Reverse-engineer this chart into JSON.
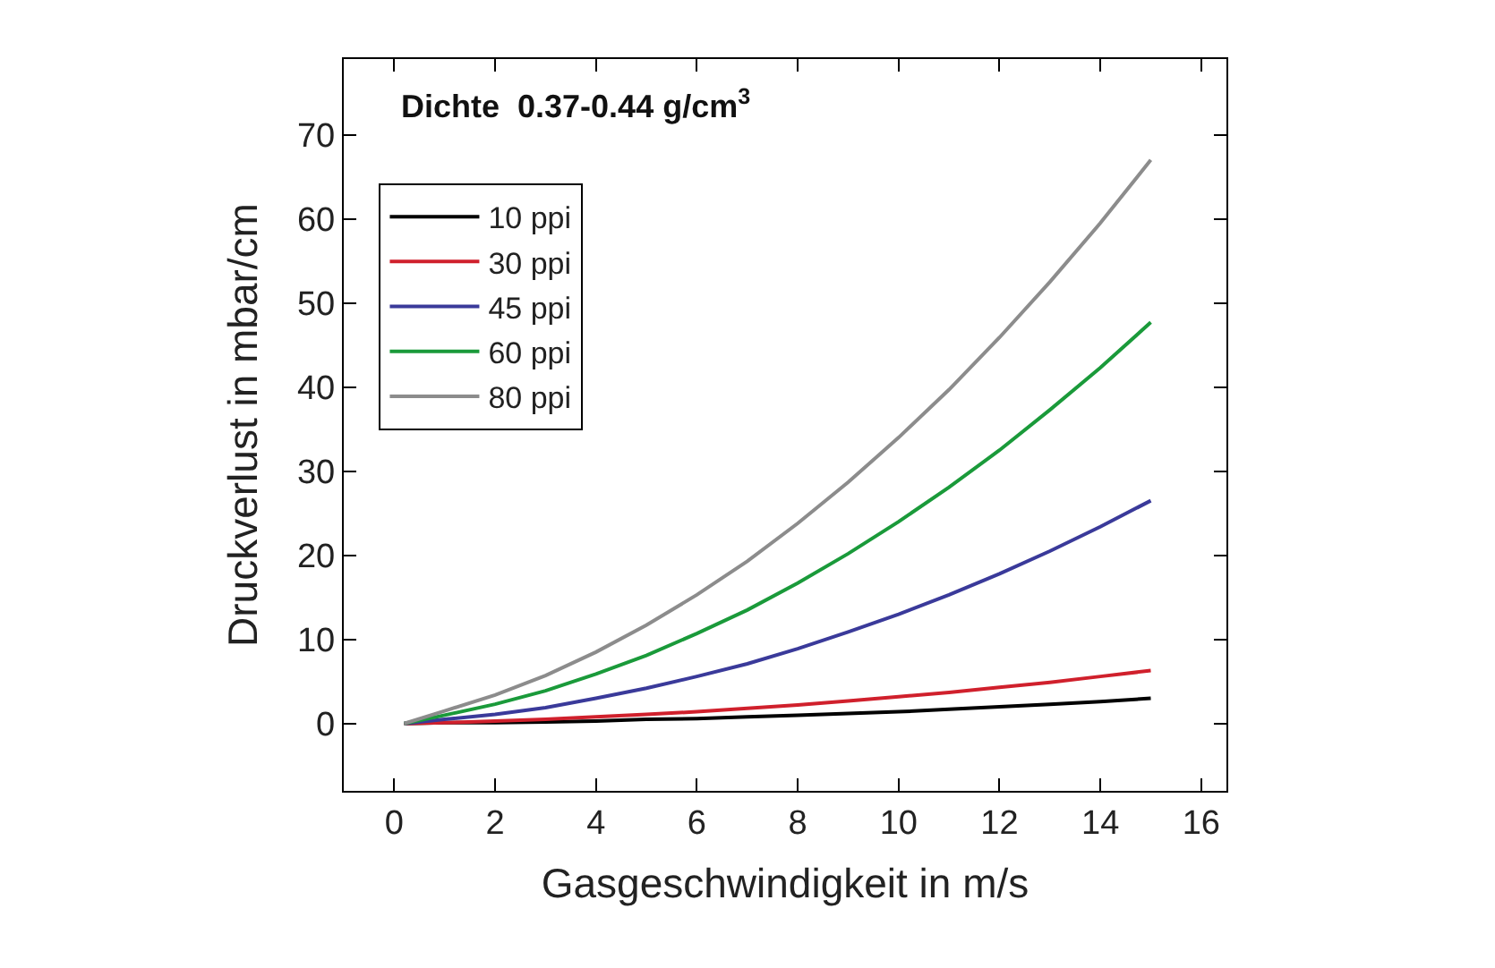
{
  "chart_data": {
    "type": "line",
    "xlabel": "Gasgeschwindigkeit in m/s",
    "ylabel": "Druckverlust in mbar/cm",
    "annotations": [
      "Dichte  0.37-0.44 g/cm$^{3}$"
    ],
    "x": [
      0.2,
      1,
      2,
      3,
      4,
      5,
      6,
      7,
      8,
      9,
      10,
      11,
      12,
      13,
      14,
      15
    ],
    "series": [
      {
        "name": "10 ppi",
        "color": "#000000",
        "values": [
          0,
          0.1,
          0.1,
          0.2,
          0.3,
          0.5,
          0.6,
          0.8,
          1.0,
          1.2,
          1.4,
          1.7,
          2.0,
          2.3,
          2.6,
          3.0
        ]
      },
      {
        "name": "30 ppi",
        "color": "#d0202c",
        "values": [
          0,
          0.1,
          0.3,
          0.5,
          0.8,
          1.1,
          1.4,
          1.8,
          2.2,
          2.7,
          3.2,
          3.7,
          4.3,
          4.9,
          5.6,
          6.3
        ]
      },
      {
        "name": "45 ppi",
        "color": "#3a3a9a",
        "values": [
          0,
          0.5,
          1.1,
          1.9,
          3.0,
          4.2,
          5.6,
          7.1,
          8.9,
          10.9,
          13.0,
          15.3,
          17.8,
          20.5,
          23.4,
          26.5
        ]
      },
      {
        "name": "60 ppi",
        "color": "#1a9a3a",
        "values": [
          0,
          1.0,
          2.3,
          3.9,
          5.9,
          8.1,
          10.7,
          13.5,
          16.7,
          20.2,
          24.0,
          28.1,
          32.5,
          37.3,
          42.3,
          47.7
        ]
      },
      {
        "name": "80 ppi",
        "color": "#8c8c8c",
        "values": [
          0,
          1.5,
          3.4,
          5.7,
          8.5,
          11.7,
          15.3,
          19.3,
          23.8,
          28.7,
          34.0,
          39.7,
          45.9,
          52.5,
          59.5,
          67.0
        ]
      }
    ],
    "xlim": [
      -1,
      16.5
    ],
    "xticks": [
      0,
      2,
      4,
      6,
      8,
      10,
      12,
      14,
      16
    ],
    "ylim": [
      -8,
      79
    ],
    "yticks": [
      0,
      10,
      20,
      30,
      40,
      50,
      60,
      70
    ],
    "legend": "top left",
    "marker": "none",
    "line_style": "solid"
  }
}
